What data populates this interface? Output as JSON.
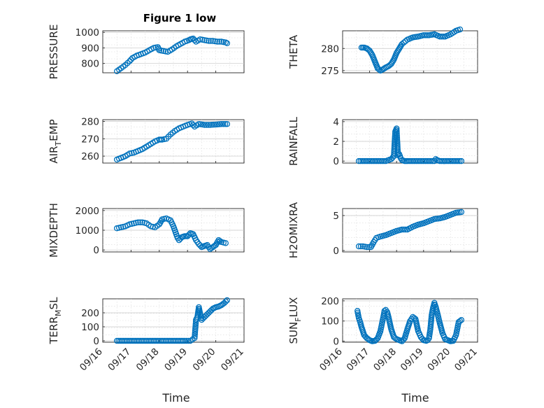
{
  "title": "Figure 1 low",
  "colors": {
    "marker": "#0072BD",
    "axis": "#262626",
    "grid": "#d9d9d9"
  },
  "chart_data": [
    {
      "type": "scatter",
      "ylabel": "PRESSURE",
      "ylim": [
        740,
        1010
      ],
      "yticks": [
        800,
        900,
        1000
      ],
      "xlim": [
        0,
        5
      ],
      "xticks": [],
      "xlabel": "",
      "title": "Figure 1 low",
      "grid": true,
      "x": [
        0.5,
        0.65,
        0.8,
        0.95,
        1.05,
        1.2,
        1.35,
        1.5,
        1.65,
        1.8,
        1.95,
        2.0,
        2.15,
        2.3,
        2.45,
        2.6,
        2.75,
        2.9,
        3.05,
        3.1,
        3.2,
        3.3,
        3.45,
        3.6,
        3.75,
        3.9,
        4.05,
        4.2,
        4.35,
        4.4
      ],
      "y": [
        750,
        770,
        790,
        815,
        835,
        850,
        860,
        870,
        885,
        900,
        905,
        885,
        880,
        875,
        890,
        910,
        925,
        940,
        950,
        955,
        960,
        940,
        955,
        950,
        945,
        945,
        940,
        940,
        935,
        930
      ]
    },
    {
      "type": "scatter",
      "ylabel": "THETA",
      "ylim": [
        274.5,
        284
      ],
      "yticks": [
        275,
        280
      ],
      "xlim": [
        0,
        5
      ],
      "xticks": [],
      "xlabel": "",
      "grid": true,
      "x": [
        0.7,
        0.8,
        0.9,
        1.0,
        1.1,
        1.2,
        1.3,
        1.4,
        1.5,
        1.6,
        1.7,
        1.8,
        1.9,
        2.0,
        2.1,
        2.2,
        2.4,
        2.6,
        2.8,
        3.0,
        3.2,
        3.4,
        3.6,
        3.8,
        4.0,
        4.2,
        4.35
      ],
      "y": [
        280.2,
        280.2,
        280,
        279.5,
        278.5,
        277,
        275.5,
        275,
        275.3,
        275.7,
        276,
        276.5,
        277.5,
        279,
        280,
        281,
        282,
        282.5,
        282.7,
        283,
        283,
        283.2,
        282.7,
        282.7,
        283.2,
        284,
        284.3
      ]
    },
    {
      "type": "scatter",
      "ylabel": "AIR_TEMP",
      "ylim": [
        256,
        281
      ],
      "yticks": [
        260,
        270,
        280
      ],
      "xlim": [
        0,
        5
      ],
      "xticks": [],
      "xlabel": "",
      "grid": true,
      "x": [
        0.5,
        0.65,
        0.8,
        0.95,
        1.1,
        1.25,
        1.4,
        1.55,
        1.7,
        1.85,
        2.0,
        2.1,
        2.25,
        2.4,
        2.55,
        2.7,
        2.85,
        3.0,
        3.15,
        3.25,
        3.4,
        3.6,
        3.8,
        4.0,
        4.2,
        4.4
      ],
      "y": [
        258,
        259,
        260,
        261.5,
        262,
        263,
        264,
        265.5,
        267,
        268.5,
        269.5,
        269.5,
        270,
        272.5,
        274.5,
        276,
        277,
        278,
        278.8,
        277,
        278.5,
        278,
        278,
        278.2,
        278.5,
        278.5
      ]
    },
    {
      "type": "scatter",
      "ylabel": "RAINFALL",
      "ylim": [
        -0.2,
        4.2
      ],
      "yticks": [
        0,
        2,
        4
      ],
      "xlim": [
        0,
        5
      ],
      "xticks": [],
      "xlabel": "",
      "grid": true,
      "x": [
        0.6,
        0.8,
        1.0,
        1.2,
        1.4,
        1.6,
        1.8,
        1.9,
        1.95,
        2.0,
        2.05,
        2.1,
        2.15,
        2.2,
        2.3,
        2.4,
        2.6,
        2.8,
        3.0,
        3.2,
        3.4,
        3.45,
        3.5,
        3.6,
        3.8,
        4.0,
        4.2,
        4.4
      ],
      "y": [
        0,
        0,
        0,
        0,
        0,
        0,
        0.2,
        0.5,
        3.0,
        3.3,
        0.6,
        0.7,
        0.3,
        0.1,
        0,
        0,
        0,
        0,
        0,
        0,
        0,
        0.2,
        0.1,
        0,
        0,
        0,
        0,
        0
      ]
    },
    {
      "type": "scatter",
      "ylabel": "MIXDEPTH",
      "ylim": [
        -100,
        2100
      ],
      "yticks": [
        0,
        1000,
        2000
      ],
      "xlim": [
        0,
        5
      ],
      "xticks": [],
      "xlabel": "",
      "grid": true,
      "x": [
        0.5,
        0.65,
        0.8,
        0.95,
        1.1,
        1.25,
        1.4,
        1.55,
        1.7,
        1.85,
        2.0,
        2.1,
        2.25,
        2.4,
        2.5,
        2.55,
        2.6,
        2.65,
        2.7,
        2.8,
        2.9,
        3.0,
        3.1,
        3.2,
        3.3,
        3.4,
        3.5,
        3.6,
        3.7,
        3.8,
        3.9,
        4.0,
        4.1,
        4.2,
        4.35
      ],
      "y": [
        1100,
        1150,
        1200,
        1300,
        1350,
        1400,
        1400,
        1350,
        1200,
        1150,
        1300,
        1550,
        1600,
        1500,
        1200,
        1000,
        800,
        600,
        500,
        650,
        700,
        700,
        850,
        800,
        500,
        300,
        150,
        200,
        250,
        50,
        150,
        250,
        500,
        400,
        350
      ]
    },
    {
      "type": "scatter",
      "ylabel": "H2OMIXRA",
      "ylim": [
        -0.2,
        6
      ],
      "yticks": [
        0,
        5
      ],
      "xlim": [
        0,
        5
      ],
      "xticks": [],
      "xlabel": "",
      "grid": true,
      "x": [
        0.6,
        0.75,
        0.9,
        1.05,
        1.15,
        1.25,
        1.4,
        1.6,
        1.8,
        2.0,
        2.2,
        2.4,
        2.6,
        2.8,
        3.0,
        3.2,
        3.4,
        3.6,
        3.8,
        4.0,
        4.2,
        4.4
      ],
      "y": [
        0.6,
        0.6,
        0.5,
        0.5,
        1.2,
        1.8,
        2.0,
        2.2,
        2.5,
        2.8,
        3.0,
        3.0,
        3.4,
        3.7,
        3.9,
        4.2,
        4.5,
        4.6,
        4.8,
        5.1,
        5.4,
        5.5
      ]
    },
    {
      "type": "scatter",
      "ylabel": "TERR_MSL",
      "ylim": [
        -10,
        300
      ],
      "yticks": [
        0,
        100,
        200
      ],
      "xlim": [
        0,
        5
      ],
      "xticks": [
        0,
        1,
        2,
        3,
        4,
        5
      ],
      "xticklabels": [
        "09/16",
        "09/17",
        "09/18",
        "09/19",
        "09/20",
        "09/21"
      ],
      "xlabel": "Time",
      "grid": true,
      "x": [
        0.5,
        0.8,
        1.1,
        1.4,
        1.7,
        2.0,
        2.3,
        2.6,
        2.9,
        3.1,
        3.25,
        3.3,
        3.35,
        3.4,
        3.45,
        3.5,
        3.6,
        3.7,
        3.8,
        3.9,
        4.0,
        4.1,
        4.2,
        4.3,
        4.4
      ],
      "y": [
        0,
        0,
        0,
        0,
        0,
        0,
        0,
        0,
        0,
        0,
        20,
        150,
        170,
        240,
        190,
        150,
        170,
        190,
        210,
        230,
        240,
        245,
        255,
        270,
        290
      ]
    },
    {
      "type": "scatter",
      "ylabel": "SUN_FLUX",
      "ylim": [
        -5,
        210
      ],
      "yticks": [
        0,
        100,
        200
      ],
      "xlim": [
        0,
        5
      ],
      "xticks": [
        0,
        1,
        2,
        3,
        4,
        5
      ],
      "xticklabels": [
        "09/16",
        "09/17",
        "09/18",
        "09/19",
        "09/20",
        "09/21"
      ],
      "xlabel": "Time",
      "grid": true,
      "x": [
        0.55,
        0.6,
        0.65,
        0.7,
        0.8,
        0.9,
        1.0,
        1.1,
        1.2,
        1.3,
        1.4,
        1.5,
        1.55,
        1.6,
        1.65,
        1.7,
        1.8,
        1.9,
        2.0,
        2.1,
        2.2,
        2.3,
        2.4,
        2.5,
        2.6,
        2.7,
        2.8,
        2.9,
        3.0,
        3.1,
        3.15,
        3.2,
        3.25,
        3.3,
        3.35,
        3.4,
        3.45,
        3.5,
        3.6,
        3.7,
        3.8,
        3.9,
        4.0,
        4.1,
        4.2,
        4.3,
        4.4
      ],
      "y": [
        150,
        115,
        95,
        70,
        30,
        15,
        5,
        0,
        2,
        15,
        50,
        115,
        150,
        155,
        145,
        120,
        60,
        20,
        10,
        5,
        0,
        15,
        60,
        100,
        120,
        110,
        50,
        20,
        5,
        2,
        5,
        15,
        60,
        130,
        165,
        190,
        170,
        145,
        90,
        40,
        10,
        5,
        0,
        2,
        30,
        95,
        105
      ]
    }
  ]
}
